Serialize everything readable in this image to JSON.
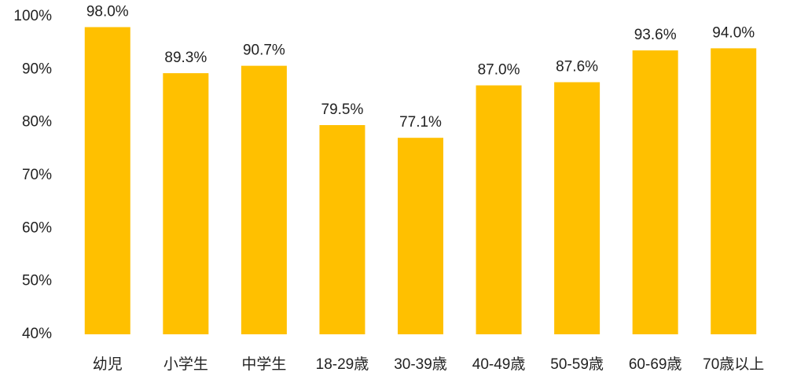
{
  "chart_data": {
    "type": "bar",
    "categories": [
      "幼児",
      "小学生",
      "中学生",
      "18-29歳",
      "30-39歳",
      "40-49歳",
      "50-59歳",
      "60-69歳",
      "70歳以上"
    ],
    "values": [
      98.0,
      89.3,
      90.7,
      79.5,
      77.1,
      87.0,
      87.6,
      93.6,
      94.0
    ],
    "value_labels": [
      "98.0%",
      "89.3%",
      "90.7%",
      "79.5%",
      "77.1%",
      "87.0%",
      "87.6%",
      "93.6%",
      "94.0%"
    ],
    "color": "#ffc000",
    "ylim": [
      40,
      100
    ],
    "yticks": [
      {
        "value": 40,
        "label": "40%"
      },
      {
        "value": 50,
        "label": "50%"
      },
      {
        "value": 60,
        "label": "60%"
      },
      {
        "value": 70,
        "label": "70%"
      },
      {
        "value": 80,
        "label": "80%"
      },
      {
        "value": 90,
        "label": "90%"
      },
      {
        "value": 100,
        "label": "100%"
      }
    ],
    "grid": false
  }
}
